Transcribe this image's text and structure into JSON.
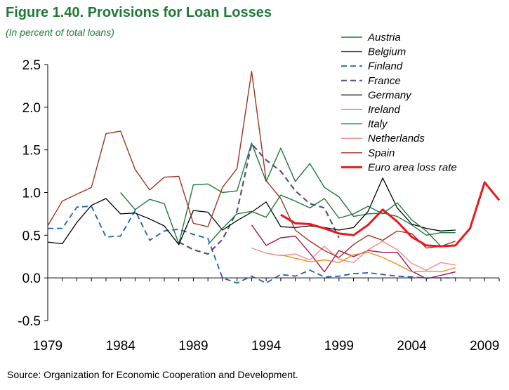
{
  "header": {
    "title": "Figure 1.40. Provisions for Loan Losses",
    "subtitle": "(In percent of total loans)"
  },
  "footer": {
    "source": "Source: Organization for Economic Cooperation and Development."
  },
  "chart_data": {
    "type": "line",
    "title": "Figure 1.40. Provisions for Loan Losses",
    "subtitle": "(In percent of total loans)",
    "xlabel": "",
    "ylabel": "",
    "xlim": [
      1979,
      2010
    ],
    "ylim": [
      -0.5,
      2.5
    ],
    "y_ticks": [
      2.5,
      2.0,
      1.5,
      1.0,
      0.5,
      0.0,
      -0.5
    ],
    "y_tick_labels": [
      "2.5",
      "2.0",
      "1.5",
      "1.0",
      "0.5",
      "0.0",
      "-0.5"
    ],
    "x_ticks": [
      1979,
      1984,
      1989,
      1994,
      1999,
      2004,
      2009
    ],
    "x_tick_labels": [
      "1979",
      "1984",
      "1989",
      "1994",
      "1999",
      "2004",
      "2009"
    ],
    "grid": false,
    "legend_position": "top-right",
    "series": [
      {
        "name": "Austria",
        "color": "#1e7a35",
        "dash": "solid",
        "width": 1.4,
        "x": [
          1984,
          1985,
          1986,
          1987,
          1988,
          1989,
          1990,
          1991,
          1992,
          1993,
          1994,
          1995,
          1996,
          1997,
          1998,
          1999,
          2000,
          2001,
          2002,
          2003,
          2004,
          2005,
          2006,
          2007
        ],
        "y": [
          1.0,
          0.8,
          0.92,
          0.87,
          0.4,
          1.09,
          1.1,
          1.0,
          1.02,
          1.58,
          1.13,
          1.52,
          1.13,
          1.34,
          1.06,
          0.95,
          0.72,
          0.75,
          0.76,
          0.72,
          0.62,
          0.5,
          0.53,
          0.53
        ]
      },
      {
        "name": "Belgium",
        "color": "#a0154d",
        "dash": "solid",
        "width": 1.4,
        "x": [
          1993,
          1994,
          1995,
          1996,
          1997,
          1998,
          1999,
          2000,
          2001,
          2002,
          2003,
          2004,
          2005,
          2006,
          2007
        ],
        "y": [
          0.62,
          0.38,
          0.47,
          0.49,
          0.29,
          0.07,
          0.32,
          0.25,
          0.32,
          0.3,
          0.3,
          0.08,
          -0.01,
          0.03,
          0.07
        ]
      },
      {
        "name": "Finland",
        "color": "#1f5fb3",
        "dash": "dashed",
        "width": 1.8,
        "x": [
          1979,
          1980,
          1981,
          1982,
          1983,
          1984,
          1985,
          1986,
          1987,
          1988,
          1989,
          1990,
          1991,
          1992,
          1993,
          1994,
          1995,
          1996,
          1997,
          1998,
          1999,
          2000,
          2001,
          2002,
          2003,
          2004,
          2005,
          2006,
          2007
        ],
        "y": [
          0.58,
          0.58,
          0.83,
          0.84,
          0.48,
          0.49,
          0.79,
          0.44,
          0.55,
          0.57,
          0.51,
          0.46,
          0.0,
          -0.06,
          0.02,
          -0.06,
          0.04,
          0.02,
          0.09,
          0.01,
          0.02,
          0.05,
          0.06,
          0.04,
          0.02,
          0.01,
          0.0,
          0.0,
          0.0
        ]
      },
      {
        "name": "France",
        "color": "#5e4d8a",
        "dash": "dashed",
        "width": 2.2,
        "x": [
          1988,
          1989,
          1990,
          1991,
          1992,
          1993,
          1994,
          1995,
          1996,
          1997,
          1998,
          1999
        ],
        "y": [
          0.42,
          0.33,
          0.28,
          0.45,
          0.78,
          1.57,
          1.38,
          1.25,
          1.02,
          0.87,
          0.82,
          0.47
        ]
      },
      {
        "name": "Germany",
        "color": "#000000",
        "dash": "solid",
        "width": 1.3,
        "x": [
          1979,
          1980,
          1981,
          1982,
          1983,
          1984,
          1985,
          1986,
          1987,
          1988,
          1989,
          1990,
          1991,
          1992,
          1993,
          1994,
          1995,
          1996,
          1997,
          1998,
          1999,
          2000,
          2001,
          2002,
          2003,
          2004,
          2005,
          2006,
          2007
        ],
        "y": [
          0.42,
          0.4,
          0.65,
          0.85,
          0.93,
          0.75,
          0.76,
          0.69,
          0.61,
          0.39,
          0.79,
          0.77,
          0.56,
          0.67,
          0.77,
          0.89,
          0.6,
          0.59,
          0.61,
          0.59,
          0.56,
          0.59,
          0.78,
          1.17,
          0.82,
          0.63,
          0.58,
          0.55,
          0.56
        ]
      },
      {
        "name": "Ireland",
        "color": "#f28b1c",
        "dash": "solid",
        "width": 1.4,
        "x": [
          1995,
          1996,
          1997,
          1998,
          1999,
          2000,
          2001,
          2002,
          2003,
          2004,
          2005,
          2006,
          2007
        ],
        "y": [
          0.27,
          0.23,
          0.19,
          0.21,
          0.18,
          0.27,
          0.3,
          0.24,
          0.16,
          0.07,
          0.08,
          0.07,
          0.12
        ]
      },
      {
        "name": "Italy",
        "color": "#1e7a35",
        "dash": "solid",
        "width": 1.4,
        "x": [
          1990,
          1991,
          1992,
          1993,
          1994,
          1995,
          1996,
          1997,
          1998,
          1999,
          2000,
          2001,
          2002,
          2003,
          2004,
          2005,
          2006,
          2007
        ],
        "y": [
          0.39,
          0.58,
          0.75,
          0.78,
          0.71,
          0.97,
          0.9,
          0.82,
          0.93,
          0.7,
          0.75,
          0.84,
          0.75,
          0.88,
          0.68,
          0.55,
          0.37,
          0.38
        ]
      },
      {
        "name": "Netherlands",
        "color": "#f28a8a",
        "dash": "solid",
        "width": 1.4,
        "x": [
          1993,
          1994,
          1995,
          1996,
          1997,
          1998,
          1999,
          2000,
          2001,
          2002,
          2003,
          2004,
          2005,
          2006,
          2007
        ],
        "y": [
          0.35,
          0.29,
          0.26,
          0.28,
          0.21,
          0.37,
          0.22,
          0.18,
          0.33,
          0.43,
          0.33,
          0.17,
          0.09,
          0.18,
          0.15
        ]
      },
      {
        "name": "Spain",
        "color": "#a0341e",
        "dash": "solid",
        "width": 1.4,
        "x": [
          1979,
          1980,
          1981,
          1982,
          1983,
          1984,
          1985,
          1986,
          1987,
          1988,
          1989,
          1990,
          1991,
          1992,
          1993,
          1994,
          1995,
          1996,
          1997,
          1998,
          1999,
          2000,
          2001,
          2002,
          2003,
          2004,
          2005,
          2006,
          2007
        ],
        "y": [
          0.61,
          0.9,
          0.98,
          1.06,
          1.69,
          1.72,
          1.27,
          1.03,
          1.18,
          1.19,
          0.64,
          0.6,
          1.06,
          1.28,
          2.42,
          1.14,
          0.93,
          0.56,
          0.43,
          0.32,
          0.24,
          0.39,
          0.5,
          0.44,
          0.55,
          0.52,
          0.35,
          0.37,
          0.43
        ]
      },
      {
        "name": "Euro area loss rate",
        "color": "#e8191e",
        "dash": "solid",
        "width": 3,
        "x": [
          1995,
          1996,
          1997,
          1998,
          1999,
          2000,
          2001,
          2002,
          2003,
          2004,
          2005,
          2006,
          2007,
          2008,
          2009,
          2010
        ],
        "y": [
          0.74,
          0.64,
          0.63,
          0.58,
          0.52,
          0.5,
          0.62,
          0.8,
          0.66,
          0.48,
          0.38,
          0.37,
          0.38,
          0.58,
          1.12,
          0.91
        ]
      }
    ]
  }
}
